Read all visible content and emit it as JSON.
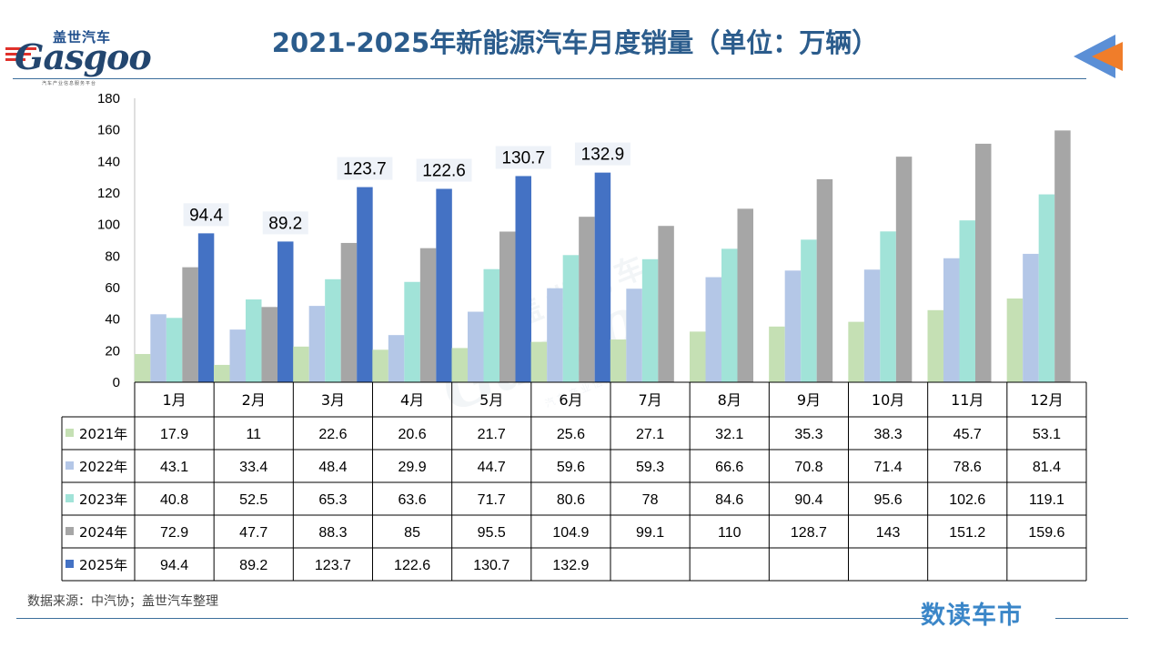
{
  "header": {
    "title": "2021-2025年新能源汽车月度销量（单位：万辆）",
    "logo_cn": "盖世汽车",
    "logo_en": "Gasgoo",
    "logo_sub": "汽车产业信息服务平台"
  },
  "footer": {
    "source": "数据来源：中汽协；盖世汽车整理",
    "brand": "数读车市"
  },
  "watermark": {
    "cn": "盖世汽车",
    "en": "Gasgoo",
    "sub": "汽车产业信息服务平台"
  },
  "colors": {
    "title": "#2b5c8c",
    "rule": "#3c6f9c",
    "corner_arrow_blue": "#5b8fd6",
    "corner_arrow_orange": "#f07d2a"
  },
  "chart_data": {
    "type": "bar",
    "categories": [
      "1月",
      "2月",
      "3月",
      "4月",
      "5月",
      "6月",
      "7月",
      "8月",
      "9月",
      "10月",
      "11月",
      "12月"
    ],
    "yticks": [
      0,
      20,
      40,
      60,
      80,
      100,
      120,
      140,
      160,
      180
    ],
    "ylim": [
      0,
      180
    ],
    "grid": false,
    "legend": "data-table",
    "series": [
      {
        "name": "2021年",
        "color": "#c5e0b4",
        "values": [
          17.9,
          11,
          22.6,
          20.6,
          21.7,
          25.6,
          27.1,
          32.1,
          35.3,
          38.3,
          45.7,
          53.1
        ]
      },
      {
        "name": "2022年",
        "color": "#b4c7e7",
        "values": [
          43.1,
          33.4,
          48.4,
          29.9,
          44.7,
          59.6,
          59.3,
          66.6,
          70.8,
          71.4,
          78.6,
          81.4
        ]
      },
      {
        "name": "2023年",
        "color": "#a1e3d8",
        "values": [
          40.8,
          52.5,
          65.3,
          63.6,
          71.7,
          80.6,
          78,
          84.6,
          90.4,
          95.6,
          102.6,
          119.1
        ]
      },
      {
        "name": "2024年",
        "color": "#a6a6a6",
        "values": [
          72.9,
          47.7,
          88.3,
          85,
          95.5,
          104.9,
          99.1,
          110,
          128.7,
          143,
          151.2,
          159.6
        ]
      },
      {
        "name": "2025年",
        "color": "#4472c4",
        "values": [
          94.4,
          89.2,
          123.7,
          122.6,
          130.7,
          132.9,
          null,
          null,
          null,
          null,
          null,
          null
        ]
      }
    ],
    "data_labels_series": "2025年"
  }
}
